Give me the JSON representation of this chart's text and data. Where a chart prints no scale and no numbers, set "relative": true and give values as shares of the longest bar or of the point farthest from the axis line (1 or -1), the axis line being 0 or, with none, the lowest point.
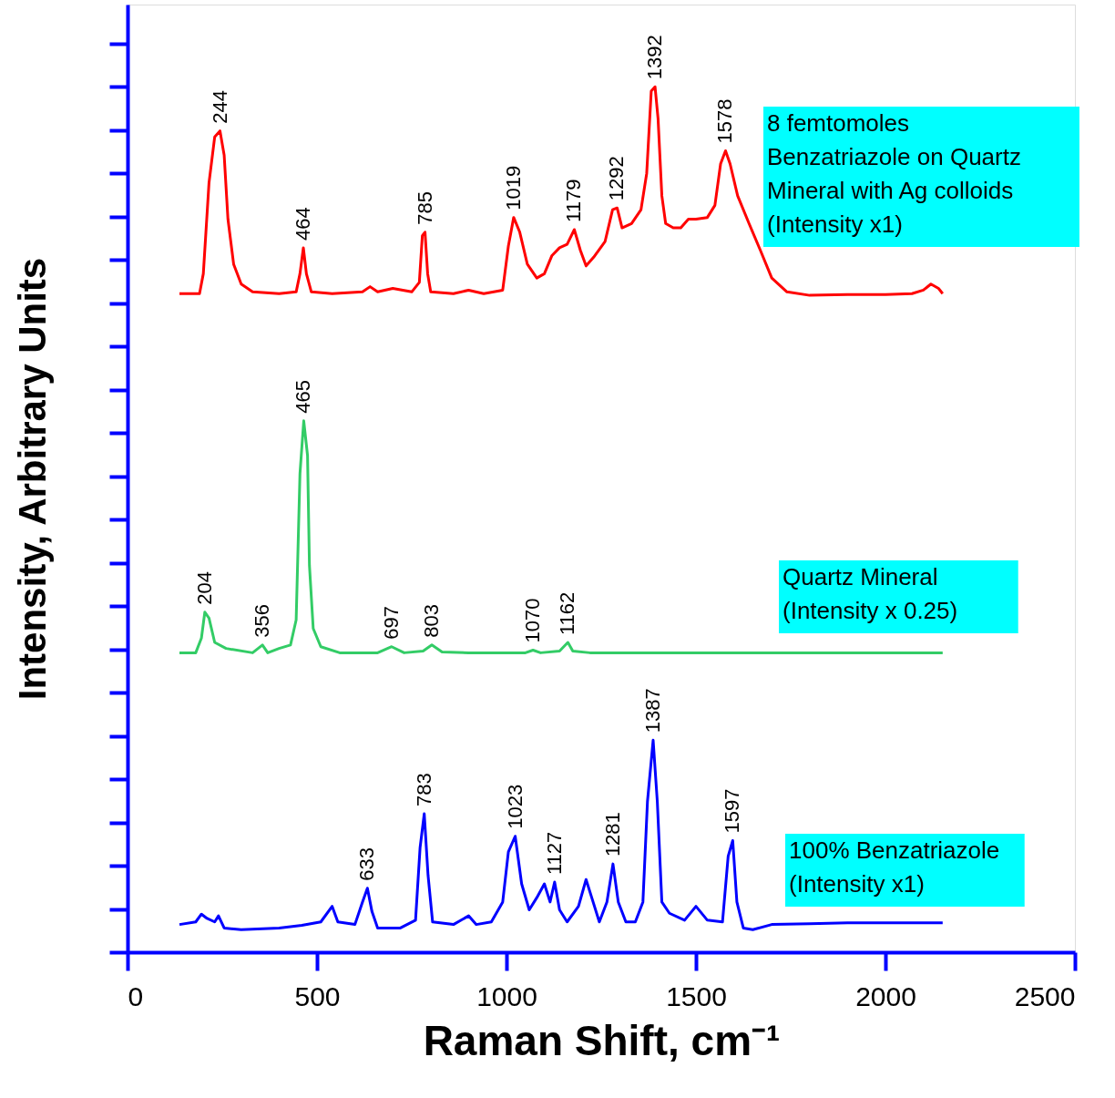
{
  "chart_data": {
    "type": "line",
    "relative": true,
    "xlabel": "Raman Shift, cm⁻¹",
    "ylabel": "Intensity, Arbitrary Units",
    "xlim": [
      0,
      2500
    ],
    "xticks": [
      0,
      500,
      1000,
      1500,
      2000,
      2500
    ],
    "series": [
      {
        "name": "8 femtomoles\nBenzatriazole on Quartz\nMineral with Ag colloids\n(Intensity x1)",
        "color": "#ff0000",
        "x": [
          137,
          190,
          200,
          215,
          230,
          244,
          255,
          265,
          280,
          300,
          330,
          400,
          445,
          455,
          464,
          472,
          485,
          540,
          620,
          640,
          660,
          700,
          750,
          770,
          778,
          785,
          792,
          800,
          860,
          900,
          940,
          990,
          1005,
          1019,
          1035,
          1055,
          1080,
          1100,
          1120,
          1140,
          1160,
          1179,
          1195,
          1210,
          1230,
          1260,
          1280,
          1292,
          1305,
          1330,
          1355,
          1370,
          1382,
          1392,
          1400,
          1410,
          1420,
          1440,
          1460,
          1480,
          1500,
          1530,
          1550,
          1565,
          1578,
          1590,
          1610,
          1640,
          1670,
          1700,
          1740,
          1800,
          1900,
          2000,
          2070,
          2100,
          2120,
          2140,
          2151
        ],
        "values": [
          0.761,
          0.761,
          0.784,
          0.889,
          0.942,
          0.949,
          0.921,
          0.847,
          0.795,
          0.772,
          0.763,
          0.761,
          0.763,
          0.784,
          0.814,
          0.784,
          0.763,
          0.761,
          0.763,
          0.769,
          0.763,
          0.767,
          0.763,
          0.774,
          0.828,
          0.832,
          0.784,
          0.763,
          0.761,
          0.765,
          0.761,
          0.765,
          0.816,
          0.849,
          0.832,
          0.795,
          0.779,
          0.784,
          0.805,
          0.814,
          0.818,
          0.835,
          0.811,
          0.793,
          0.803,
          0.821,
          0.858,
          0.86,
          0.837,
          0.842,
          0.858,
          0.9,
          0.995,
          1.0,
          0.963,
          0.874,
          0.842,
          0.837,
          0.837,
          0.847,
          0.847,
          0.849,
          0.863,
          0.911,
          0.926,
          0.911,
          0.874,
          0.842,
          0.811,
          0.779,
          0.763,
          0.759,
          0.76,
          0.76,
          0.761,
          0.765,
          0.772,
          0.767,
          0.761
        ]
      },
      {
        "name": "Quartz Mineral\n(Intensity x 0.25)",
        "color": "#33cc66",
        "x": [
          137,
          180,
          195,
          204,
          215,
          230,
          260,
          330,
          356,
          370,
          400,
          430,
          445,
          455,
          465,
          475,
          480,
          490,
          510,
          560,
          660,
          697,
          730,
          780,
          803,
          830,
          900,
          1000,
          1050,
          1070,
          1090,
          1140,
          1162,
          1175,
          1220,
          1400,
          1700,
          2000,
          2151
        ],
        "values": [
          0.346,
          0.346,
          0.363,
          0.393,
          0.386,
          0.358,
          0.351,
          0.346,
          0.355,
          0.346,
          0.351,
          0.355,
          0.384,
          0.553,
          0.614,
          0.574,
          0.447,
          0.374,
          0.353,
          0.346,
          0.346,
          0.353,
          0.346,
          0.348,
          0.355,
          0.347,
          0.346,
          0.346,
          0.346,
          0.349,
          0.346,
          0.348,
          0.358,
          0.348,
          0.346,
          0.346,
          0.346,
          0.346,
          0.346
        ]
      },
      {
        "name": "100% Benzatriazole\n(Intensity x1)",
        "color": "#0000ff",
        "x": [
          137,
          180,
          195,
          210,
          230,
          240,
          255,
          300,
          400,
          460,
          510,
          540,
          555,
          600,
          620,
          633,
          645,
          660,
          720,
          760,
          772,
          783,
          793,
          805,
          860,
          900,
          920,
          960,
          990,
          1005,
          1023,
          1040,
          1060,
          1080,
          1100,
          1115,
          1127,
          1140,
          1160,
          1190,
          1210,
          1225,
          1245,
          1265,
          1281,
          1295,
          1315,
          1340,
          1360,
          1372,
          1387,
          1398,
          1410,
          1430,
          1470,
          1500,
          1530,
          1570,
          1585,
          1597,
          1608,
          1625,
          1650,
          1700,
          1800,
          1900,
          2000,
          2151
        ],
        "values": [
          0.032,
          0.035,
          0.044,
          0.039,
          0.035,
          0.042,
          0.028,
          0.026,
          0.028,
          0.031,
          0.035,
          0.053,
          0.035,
          0.032,
          0.058,
          0.074,
          0.047,
          0.028,
          0.028,
          0.037,
          0.121,
          0.16,
          0.089,
          0.035,
          0.032,
          0.042,
          0.032,
          0.035,
          0.058,
          0.116,
          0.134,
          0.079,
          0.049,
          0.063,
          0.079,
          0.058,
          0.081,
          0.049,
          0.035,
          0.053,
          0.084,
          0.063,
          0.035,
          0.058,
          0.102,
          0.058,
          0.035,
          0.035,
          0.058,
          0.174,
          0.245,
          0.174,
          0.058,
          0.045,
          0.037,
          0.053,
          0.037,
          0.035,
          0.111,
          0.129,
          0.058,
          0.028,
          0.026,
          0.032,
          0.033,
          0.034,
          0.034,
          0.034
        ]
      }
    ],
    "annotations": [
      {
        "text": "244",
        "x": 244,
        "y": 0.949
      },
      {
        "text": "464",
        "x": 464,
        "y": 0.814
      },
      {
        "text": "785",
        "x": 785,
        "y": 0.832
      },
      {
        "text": "1019",
        "x": 1019,
        "y": 0.849
      },
      {
        "text": "1179",
        "x": 1179,
        "y": 0.835
      },
      {
        "text": "1292",
        "x": 1292,
        "y": 0.86
      },
      {
        "text": "1392",
        "x": 1392,
        "y": 1.0
      },
      {
        "text": "1578",
        "x": 1578,
        "y": 0.926
      },
      {
        "text": "204",
        "x": 204,
        "y": 0.393
      },
      {
        "text": "356",
        "x": 356,
        "y": 0.355
      },
      {
        "text": "465",
        "x": 465,
        "y": 0.614
      },
      {
        "text": "697",
        "x": 697,
        "y": 0.353
      },
      {
        "text": "803",
        "x": 803,
        "y": 0.355
      },
      {
        "text": "1070",
        "x": 1070,
        "y": 0.349
      },
      {
        "text": "1162",
        "x": 1162,
        "y": 0.358
      },
      {
        "text": "633",
        "x": 633,
        "y": 0.074
      },
      {
        "text": "783",
        "x": 783,
        "y": 0.16
      },
      {
        "text": "1023",
        "x": 1023,
        "y": 0.134
      },
      {
        "text": "1127",
        "x": 1127,
        "y": 0.081
      },
      {
        "text": "1281",
        "x": 1281,
        "y": 0.102
      },
      {
        "text": "1387",
        "x": 1387,
        "y": 0.245
      },
      {
        "text": "1597",
        "x": 1597,
        "y": 0.129
      }
    ]
  }
}
